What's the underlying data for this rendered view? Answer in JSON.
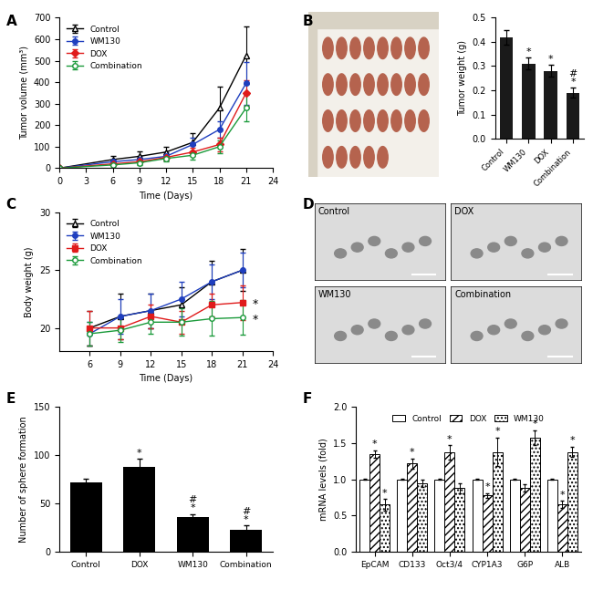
{
  "chart_data": [
    {
      "panel": "A",
      "type": "line",
      "x": [
        0,
        6,
        9,
        12,
        15,
        18,
        21
      ],
      "x_label": "Time (Days)",
      "y_label": "Tumor volume (mm³)",
      "xlim": [
        0,
        24
      ],
      "xticks": [
        0,
        3,
        6,
        9,
        12,
        15,
        18,
        21,
        24
      ],
      "ylim": [
        0,
        700
      ],
      "yticks": [
        0,
        100,
        200,
        300,
        400,
        500,
        600,
        700
      ],
      "legend": "upper left",
      "series": [
        {
          "name": "Control",
          "color": "#000000",
          "marker": "triangle_open",
          "values": [
            0,
            40,
            55,
            75,
            120,
            280,
            525
          ],
          "errors": [
            0,
            15,
            25,
            25,
            45,
            100,
            135
          ]
        },
        {
          "name": "WM130",
          "color": "#1f3fbf",
          "marker": "circle",
          "values": [
            0,
            30,
            40,
            55,
            110,
            180,
            395
          ],
          "errors": [
            0,
            10,
            15,
            20,
            30,
            40,
            100
          ]
        },
        {
          "name": "DOX",
          "color": "#e01b1b",
          "marker": "diamond",
          "values": [
            0,
            20,
            30,
            50,
            75,
            110,
            350
          ],
          "errors": [
            0,
            8,
            10,
            15,
            20,
            30,
            60
          ]
        },
        {
          "name": "Combination",
          "color": "#1a9a3a",
          "marker": "circle_open",
          "values": [
            0,
            15,
            25,
            45,
            60,
            100,
            280
          ],
          "errors": [
            0,
            5,
            10,
            15,
            20,
            30,
            60
          ]
        }
      ]
    },
    {
      "panel": "B",
      "type": "bar",
      "categories": [
        "Control",
        "WM130",
        "DOX",
        "Combination"
      ],
      "values": [
        0.42,
        0.31,
        0.28,
        0.19
      ],
      "errors": [
        0.03,
        0.025,
        0.025,
        0.02
      ],
      "annotations": [
        null,
        "*",
        "*",
        "#\n*"
      ],
      "color": "#1a1a1a",
      "y_label": "Tumor weight (g)",
      "ylim": [
        0,
        0.5
      ],
      "yticks": [
        {
          "value": 0,
          "label": "0.0"
        },
        0.1,
        0.2,
        0.3,
        0.4,
        0.5
      ]
    },
    {
      "panel": "C",
      "type": "line",
      "x": [
        6,
        9,
        12,
        15,
        18,
        21
      ],
      "x_label": "Time (Days)",
      "y_label": "Body weight (g)",
      "xlim": [
        3,
        24
      ],
      "xticks": [
        6,
        9,
        12,
        15,
        18,
        21,
        24
      ],
      "ylim": [
        18,
        30
      ],
      "yticks": [
        20,
        25,
        30
      ],
      "legend": "upper left",
      "series": [
        {
          "name": "Control",
          "color": "#000000",
          "marker": "triangle_open",
          "values": [
            20,
            21,
            21.5,
            22,
            24,
            25
          ],
          "errors": [
            1.5,
            2,
            1.5,
            1.5,
            1.8,
            1.8
          ]
        },
        {
          "name": "WM130",
          "color": "#1f3fbf",
          "marker": "circle",
          "values": [
            19.5,
            21,
            21.5,
            22.5,
            24,
            25
          ],
          "errors": [
            1,
            1.5,
            1.5,
            1.5,
            1.5,
            1.5
          ]
        },
        {
          "name": "DOX",
          "color": "#e01b1b",
          "marker": "square",
          "values": [
            20,
            20,
            21,
            20.5,
            22,
            22.2
          ],
          "errors": [
            1.5,
            1,
            1,
            1,
            1,
            1.5
          ],
          "annotation": "*"
        },
        {
          "name": "Combination",
          "color": "#1a9a3a",
          "marker": "circle_open",
          "values": [
            19.5,
            19.8,
            20.5,
            20.5,
            20.8,
            20.9
          ],
          "errors": [
            1,
            1,
            1,
            1.2,
            1.5,
            1.5
          ],
          "annotation": "*"
        }
      ]
    },
    {
      "panel": "E",
      "type": "bar",
      "categories": [
        "Control",
        "DOX",
        "WM130",
        "Combination"
      ],
      "values": [
        72,
        88,
        36,
        23
      ],
      "errors": [
        4,
        8,
        3,
        4
      ],
      "annotations": [
        null,
        "*",
        "#\n*",
        "#\n*"
      ],
      "color": "#000000",
      "y_label": "Number of sphere formation",
      "ylim": [
        0,
        150
      ],
      "yticks": [
        0,
        50,
        100,
        150
      ]
    },
    {
      "panel": "F",
      "type": "bar",
      "categories": [
        "EpCAM",
        "CD133",
        "Oct3/4",
        "CYP1A3",
        "G6P",
        "ALB"
      ],
      "y_label": "mRNA levels (fold)",
      "ylim": [
        0,
        2
      ],
      "yticks": [
        {
          "value": 0,
          "label": "0.0"
        },
        0.5,
        {
          "value": 1,
          "label": "1.0"
        },
        1.5,
        {
          "value": 2,
          "label": "2.0"
        }
      ],
      "legend": "upper center",
      "series": [
        {
          "name": "Control",
          "color": "#ffffff",
          "values": [
            1,
            1,
            1,
            1,
            1,
            1
          ],
          "errors": [
            0.01,
            0.01,
            0.01,
            0.01,
            0.01,
            0.01
          ]
        },
        {
          "name": "DOX",
          "color": "#ffffff",
          "values": [
            1.35,
            1.22,
            1.37,
            0.78,
            0.88,
            0.65
          ],
          "errors": [
            0.05,
            0.07,
            0.1,
            0.03,
            0.05,
            0.05
          ],
          "annotations": [
            "*",
            "*",
            "*",
            "*",
            null,
            "*"
          ]
        },
        {
          "name": "WM130",
          "color": "#ffffff",
          "values": [
            0.65,
            0.95,
            0.88,
            1.38,
            1.58,
            1.38
          ],
          "errors": [
            0.08,
            0.05,
            0.07,
            0.2,
            0.1,
            0.07
          ],
          "annotations": [
            "*",
            null,
            null,
            "*",
            "*",
            "*"
          ]
        }
      ]
    }
  ],
  "photos": [
    {
      "panel": "D",
      "labels": [
        "Control",
        "DOX",
        "WM130",
        "Combination"
      ]
    }
  ]
}
